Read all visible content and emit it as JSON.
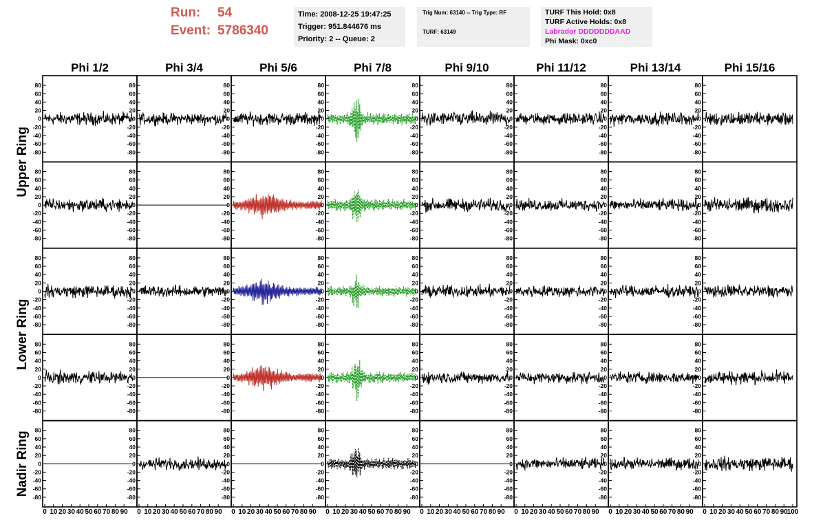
{
  "header": {
    "run_label": "Run:",
    "run_value": "54",
    "event_label": "Event:",
    "event_value": "5786340"
  },
  "info": {
    "time": "Time: 2008-12-25 19:47:25",
    "trigger": "Trigger: 951.844676 ms",
    "priority": "Priority: 2 -- Queue: 2",
    "trig_num": "Trig Num: 63140 -- Trig Type: RF",
    "turf": "TURF: 63149",
    "turf_hold": "TURF This Hold: 0x8",
    "turf_active": "TURF Active Holds: 0x8",
    "labrador": "Labrador DDDDDDDAAD",
    "phi_mask": "Phi Mask: 0xc0"
  },
  "colors": {
    "default": "#000000",
    "green": "#1e9a1e",
    "red": "#c0302a",
    "blue": "#22229a",
    "labrador": "#e020e0",
    "run_text": "#d0584f"
  },
  "chart_data": {
    "type": "line",
    "columns": [
      "Phi 1/2",
      "Phi 3/4",
      "Phi 5/6",
      "Phi 7/8",
      "Phi 9/10",
      "Phi 11/12",
      "Phi 13/14",
      "Phi 15/16"
    ],
    "ring_labels": [
      {
        "label": "Upper Ring",
        "rows": [
          0,
          1
        ]
      },
      {
        "label": "Lower Ring",
        "rows": [
          2,
          3
        ]
      },
      {
        "label": "Nadir Ring",
        "rows": [
          4
        ]
      }
    ],
    "ylim": [
      -95,
      95
    ],
    "yticks": [
      -80,
      -60,
      -40,
      -20,
      0,
      20,
      40,
      60,
      80
    ],
    "xlim": [
      0,
      100
    ],
    "xtick_labels": [
      "0",
      "10",
      "20",
      "30",
      "40",
      "50",
      "60",
      "70",
      "80",
      "90",
      "100"
    ],
    "rows": [
      [
        {
          "style": "noise",
          "color": "default",
          "amp": 12,
          "peak": 40
        },
        {
          "style": "noise",
          "color": "default",
          "amp": 11,
          "peak": 38
        },
        {
          "style": "noise",
          "color": "default",
          "amp": 12,
          "peak": 40
        },
        {
          "style": "burst",
          "color": "green",
          "amp": 14,
          "peak": 55,
          "dashed": true
        },
        {
          "style": "noise",
          "color": "default",
          "amp": 13,
          "peak": 45
        },
        {
          "style": "noise",
          "color": "default",
          "amp": 11,
          "peak": 35
        },
        {
          "style": "noise",
          "color": "default",
          "amp": 12,
          "peak": 38
        },
        {
          "style": "noise",
          "color": "default",
          "amp": 13,
          "peak": 40
        }
      ],
      [
        {
          "style": "noise",
          "color": "default",
          "amp": 12,
          "peak": 40
        },
        {
          "style": "flat",
          "color": "default",
          "amp": 0,
          "peak": 0
        },
        {
          "style": "pulse",
          "color": "red",
          "amp": 14,
          "peak": 70
        },
        {
          "style": "burst",
          "color": "green",
          "amp": 14,
          "peak": 65,
          "dashed": true
        },
        {
          "style": "noise",
          "color": "default",
          "amp": 12,
          "peak": 38
        },
        {
          "style": "noise",
          "color": "default",
          "amp": 11,
          "peak": 35
        },
        {
          "style": "noise",
          "color": "default",
          "amp": 11,
          "peak": 35
        },
        {
          "style": "noise",
          "color": "default",
          "amp": 14,
          "peak": 45
        }
      ],
      [
        {
          "style": "noise",
          "color": "default",
          "amp": 12,
          "peak": 40
        },
        {
          "style": "noise",
          "color": "default",
          "amp": 11,
          "peak": 38
        },
        {
          "style": "pulse",
          "color": "blue",
          "amp": 14,
          "peak": 55
        },
        {
          "style": "burst",
          "color": "green",
          "amp": 12,
          "peak": 40,
          "dashed": true
        },
        {
          "style": "noise",
          "color": "default",
          "amp": 11,
          "peak": 35
        },
        {
          "style": "noise",
          "color": "default",
          "amp": 11,
          "peak": 35
        },
        {
          "style": "noise",
          "color": "default",
          "amp": 11,
          "peak": 35
        },
        {
          "style": "noise",
          "color": "default",
          "amp": 12,
          "peak": 38
        }
      ],
      [
        {
          "style": "noise",
          "color": "default",
          "amp": 12,
          "peak": 45
        },
        {
          "style": "flat",
          "color": "default",
          "amp": 0,
          "peak": 0
        },
        {
          "style": "pulse",
          "color": "red",
          "amp": 14,
          "peak": 70
        },
        {
          "style": "burst",
          "color": "green",
          "amp": 13,
          "peak": 60,
          "dashed": true
        },
        {
          "style": "noise",
          "color": "default",
          "amp": 11,
          "peak": 35
        },
        {
          "style": "noise",
          "color": "default",
          "amp": 11,
          "peak": 35
        },
        {
          "style": "noise",
          "color": "default",
          "amp": 11,
          "peak": 35
        },
        {
          "style": "noise",
          "color": "default",
          "amp": 13,
          "peak": 40
        }
      ],
      [
        {
          "style": "flat",
          "color": "default",
          "amp": 0,
          "peak": 0
        },
        {
          "style": "noise",
          "color": "default",
          "amp": 11,
          "peak": 35
        },
        {
          "style": "flat",
          "color": "default",
          "amp": 0,
          "peak": 0
        },
        {
          "style": "burst",
          "color": "default",
          "amp": 13,
          "peak": 85,
          "dashed": true
        },
        {
          "style": "flat",
          "color": "default",
          "amp": 0,
          "peak": 0
        },
        {
          "style": "noise",
          "color": "default",
          "amp": 11,
          "peak": 35
        },
        {
          "style": "noise",
          "color": "default",
          "amp": 11,
          "peak": 35
        },
        {
          "style": "noise",
          "color": "default",
          "amp": 13,
          "peak": 40
        }
      ]
    ]
  }
}
